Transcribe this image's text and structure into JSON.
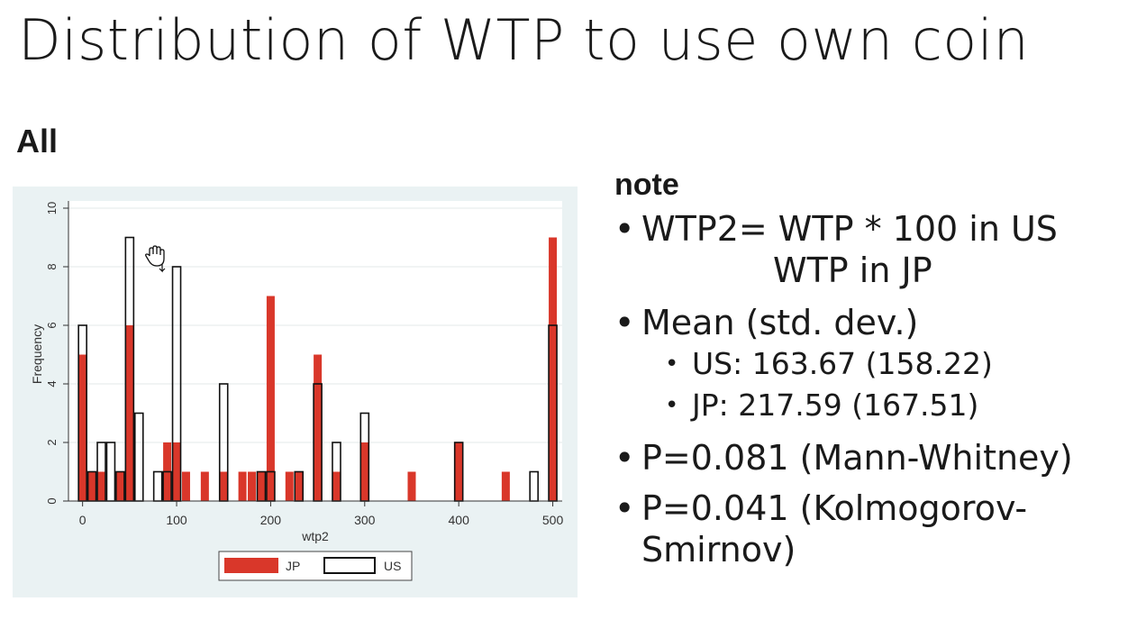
{
  "slide": {
    "title": "Distribution of WTP to use own coin",
    "section_label": "All"
  },
  "notes": {
    "heading": "note",
    "wtp_line1": "WTP2= WTP * 100 in US",
    "wtp_line2": "WTP  in JP",
    "mean_label": "Mean (std. dev.)",
    "us_mean": "US: 163.67 (158.22)",
    "jp_mean": "JP: 217.59 (167.51)",
    "p_mw": "P=0.081 (Mann-Whitney)",
    "p_ks": "P=0.041 (Kolmogorov-Smirnov)"
  },
  "colors": {
    "jp": "#d9372a",
    "us_outline": "#111111",
    "panel_bg": "#eaf2f3",
    "plot_bg": "#ffffff",
    "grid": "#e3e8ea"
  },
  "chart_data": {
    "type": "bar",
    "xlabel": "wtp2",
    "ylabel": "Frequency",
    "xlim": [
      -15,
      510
    ],
    "ylim": [
      0,
      10
    ],
    "xticks": [
      0,
      100,
      200,
      300,
      400,
      500
    ],
    "yticks": [
      0,
      2,
      4,
      6,
      8,
      10
    ],
    "grid": true,
    "legend_position": "bottom",
    "series": [
      {
        "name": "JP",
        "style": "filled",
        "x": [
          0,
          10,
          20,
          40,
          50,
          90,
          100,
          110,
          130,
          150,
          170,
          180,
          190,
          200,
          220,
          230,
          250,
          270,
          300,
          350,
          400,
          450,
          500
        ],
        "values": [
          5,
          1,
          1,
          1,
          6,
          2,
          2,
          1,
          1,
          1,
          1,
          1,
          1,
          7,
          1,
          1,
          5,
          1,
          2,
          1,
          2,
          1,
          9
        ]
      },
      {
        "name": "US",
        "style": "outline",
        "x": [
          0,
          10,
          20,
          30,
          40,
          50,
          60,
          80,
          90,
          100,
          150,
          190,
          200,
          230,
          250,
          270,
          300,
          400,
          480,
          500
        ],
        "values": [
          6,
          1,
          2,
          2,
          1,
          9,
          3,
          1,
          1,
          8,
          4,
          1,
          1,
          1,
          4,
          2,
          3,
          2,
          1,
          6
        ]
      }
    ]
  }
}
